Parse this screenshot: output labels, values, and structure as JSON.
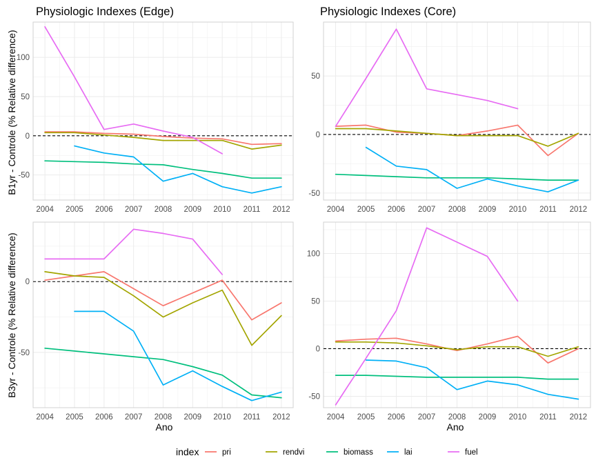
{
  "figure": {
    "y_axis_labels": [
      "B1yr - Controle (% Relative difference)",
      "B3yr - Controle (% Relative difference)"
    ],
    "x_axis_label": "Ano",
    "legend": {
      "title": "index",
      "items": [
        {
          "name": "pri",
          "color": "#F8766D"
        },
        {
          "name": "rendvi",
          "color": "#A3A500"
        },
        {
          "name": "biomass",
          "color": "#00BF7D"
        },
        {
          "name": "lai",
          "color": "#00B0F6"
        },
        {
          "name": "fuel",
          "color": "#E76BF3"
        }
      ]
    }
  },
  "chart_data": [
    {
      "type": "line",
      "title": "Physiologic Indexes (Edge)",
      "xlabel": "",
      "ylabel": "B1yr - Controle (% Relative difference)",
      "xlim": [
        2003.6,
        2012.4
      ],
      "ylim": [
        -82,
        145
      ],
      "xticks": [
        2004,
        2005,
        2006,
        2007,
        2008,
        2009,
        2010,
        2011,
        2012
      ],
      "yticks": [
        -50,
        0,
        50,
        100
      ],
      "reference_line": {
        "y": 0,
        "style": "dashed"
      },
      "grid": true,
      "series": [
        {
          "name": "pri",
          "x": [
            2004,
            2005,
            2006,
            2007,
            2008,
            2009,
            2010,
            2011,
            2012
          ],
          "y": [
            5,
            5,
            3,
            2,
            -1,
            -3,
            -4,
            -11,
            -10
          ]
        },
        {
          "name": "rendvi",
          "x": [
            2004,
            2005,
            2006,
            2007,
            2008,
            2009,
            2010,
            2011,
            2012
          ],
          "y": [
            4,
            4,
            1,
            -2,
            -6,
            -6,
            -6,
            -17,
            -12
          ]
        },
        {
          "name": "biomass",
          "x": [
            2004,
            2005,
            2006,
            2007,
            2008,
            2009,
            2010,
            2011,
            2012
          ],
          "y": [
            -32,
            -33,
            -34,
            -36,
            -37,
            -43,
            -48,
            -54,
            -54
          ]
        },
        {
          "name": "lai",
          "x": [
            2005,
            2006,
            2007,
            2008,
            2009,
            2010,
            2011,
            2012
          ],
          "y": [
            -13,
            -22,
            -27,
            -58,
            -48,
            -65,
            -73,
            -65
          ]
        },
        {
          "name": "fuel",
          "x": [
            2004,
            2005,
            2006,
            2007,
            2008,
            2009,
            2010
          ],
          "y": [
            139,
            75,
            8,
            15,
            6,
            -2,
            -23
          ]
        }
      ]
    },
    {
      "type": "line",
      "title": "Physiologic Indexes (Core)",
      "xlabel": "",
      "ylabel": "",
      "xlim": [
        2003.6,
        2012.4
      ],
      "ylim": [
        -56,
        96
      ],
      "xticks": [
        2004,
        2005,
        2006,
        2007,
        2008,
        2009,
        2010,
        2011,
        2012
      ],
      "yticks": [
        -50,
        0,
        50
      ],
      "reference_line": {
        "y": 0,
        "style": "dashed"
      },
      "grid": true,
      "series": [
        {
          "name": "pri",
          "x": [
            2004,
            2005,
            2006,
            2007,
            2008,
            2009,
            2010,
            2011,
            2012
          ],
          "y": [
            7,
            8,
            2,
            1,
            -1,
            3,
            8,
            -18,
            1
          ]
        },
        {
          "name": "rendvi",
          "x": [
            2004,
            2005,
            2006,
            2007,
            2008,
            2009,
            2010,
            2011,
            2012
          ],
          "y": [
            5,
            5,
            3,
            1,
            -1,
            -1,
            -1,
            -10,
            1
          ]
        },
        {
          "name": "biomass",
          "x": [
            2004,
            2005,
            2006,
            2007,
            2008,
            2009,
            2010,
            2011,
            2012
          ],
          "y": [
            -34,
            -35,
            -36,
            -37,
            -37,
            -37,
            -38,
            -39,
            -39
          ]
        },
        {
          "name": "lai",
          "x": [
            2005,
            2006,
            2007,
            2008,
            2009,
            2010,
            2011,
            2012
          ],
          "y": [
            -11,
            -27,
            -30,
            -46,
            -38,
            -44,
            -49,
            -39
          ]
        },
        {
          "name": "fuel",
          "x": [
            2004,
            2005,
            2006,
            2007,
            2008,
            2009,
            2010
          ],
          "y": [
            7,
            48,
            90,
            39,
            34,
            29,
            22
          ]
        }
      ]
    },
    {
      "type": "line",
      "title": "",
      "xlabel": "Ano",
      "ylabel": "B3yr - Controle (% Relative difference)",
      "xlim": [
        2003.6,
        2012.4
      ],
      "ylim": [
        -89,
        42
      ],
      "xticks": [
        2004,
        2005,
        2006,
        2007,
        2008,
        2009,
        2010,
        2011,
        2012
      ],
      "yticks": [
        -50,
        0
      ],
      "reference_line": {
        "y": 0,
        "style": "dashed"
      },
      "grid": true,
      "series": [
        {
          "name": "pri",
          "x": [
            2004,
            2005,
            2006,
            2007,
            2008,
            2009,
            2010,
            2011,
            2012
          ],
          "y": [
            1,
            4,
            7,
            -5,
            -17,
            -8,
            1,
            -27,
            -15
          ]
        },
        {
          "name": "rendvi",
          "x": [
            2004,
            2005,
            2006,
            2007,
            2008,
            2009,
            2010,
            2011,
            2012
          ],
          "y": [
            7,
            4,
            3,
            -10,
            -25,
            -15,
            -6,
            -45,
            -24
          ]
        },
        {
          "name": "biomass",
          "x": [
            2004,
            2005,
            2006,
            2007,
            2008,
            2009,
            2010,
            2011,
            2012
          ],
          "y": [
            -47,
            -49,
            -51,
            -53,
            -55,
            -60,
            -66,
            -80,
            -82
          ]
        },
        {
          "name": "lai",
          "x": [
            2005,
            2006,
            2007,
            2008,
            2009,
            2010,
            2011,
            2012
          ],
          "y": [
            -21,
            -21,
            -35,
            -73,
            -63,
            -74,
            -84,
            -78
          ]
        },
        {
          "name": "fuel",
          "x": [
            2004,
            2005,
            2006,
            2007,
            2008,
            2009,
            2010
          ],
          "y": [
            16,
            16,
            16,
            37,
            34,
            30,
            5
          ]
        }
      ]
    },
    {
      "type": "line",
      "title": "",
      "xlabel": "Ano",
      "ylabel": "",
      "xlim": [
        2003.6,
        2012.4
      ],
      "ylim": [
        -62,
        133
      ],
      "xticks": [
        2004,
        2005,
        2006,
        2007,
        2008,
        2009,
        2010,
        2011,
        2012
      ],
      "yticks": [
        -50,
        0,
        50,
        100
      ],
      "reference_line": {
        "y": 0,
        "style": "dashed"
      },
      "grid": true,
      "series": [
        {
          "name": "pri",
          "x": [
            2004,
            2005,
            2006,
            2007,
            2008,
            2009,
            2010,
            2011,
            2012
          ],
          "y": [
            8,
            10,
            11,
            5,
            -2,
            5,
            13,
            -15,
            0
          ]
        },
        {
          "name": "rendvi",
          "x": [
            2004,
            2005,
            2006,
            2007,
            2008,
            2009,
            2010,
            2011,
            2012
          ],
          "y": [
            7,
            7,
            6,
            3,
            -1,
            2,
            2,
            -8,
            2
          ]
        },
        {
          "name": "biomass",
          "x": [
            2004,
            2005,
            2006,
            2007,
            2008,
            2009,
            2010,
            2011,
            2012
          ],
          "y": [
            -28,
            -28,
            -29,
            -30,
            -30,
            -30,
            -30,
            -32,
            -32
          ]
        },
        {
          "name": "lai",
          "x": [
            2005,
            2006,
            2007,
            2008,
            2009,
            2010,
            2011,
            2012
          ],
          "y": [
            -12,
            -13,
            -20,
            -43,
            -34,
            -38,
            -48,
            -53
          ]
        },
        {
          "name": "fuel",
          "x": [
            2004,
            2005,
            2006,
            2007,
            2008,
            2009,
            2010
          ],
          "y": [
            -59,
            -10,
            40,
            127,
            112,
            97,
            50
          ]
        }
      ]
    }
  ]
}
